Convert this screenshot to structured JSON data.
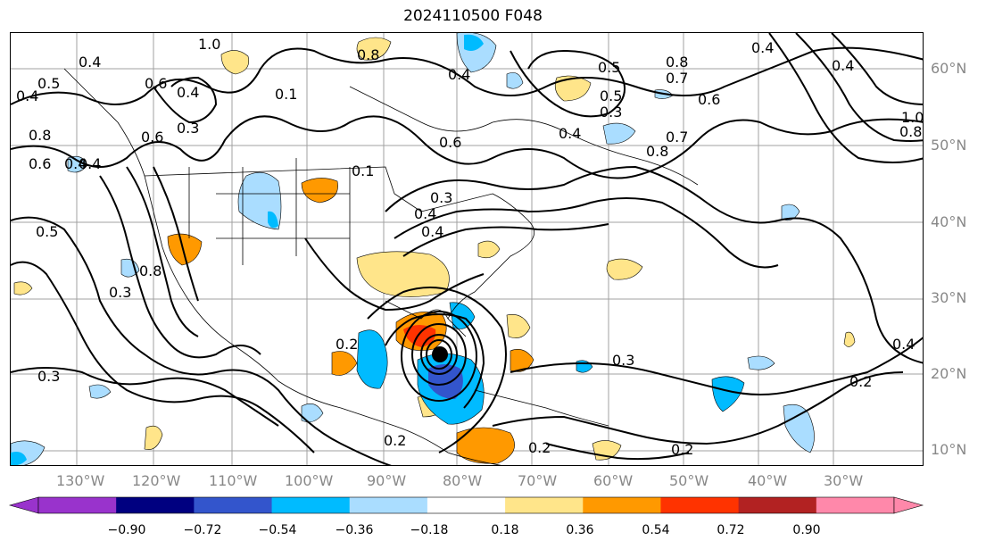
{
  "title": "2024110500 F048",
  "lon_ticks": [
    "130°W",
    "120°W",
    "110°W",
    "100°W",
    "90°W",
    "80°W",
    "70°W",
    "60°W",
    "50°W",
    "40°W",
    "30°W"
  ],
  "lat_ticks": [
    "60°N",
    "50°N",
    "40°N",
    "30°N",
    "20°N",
    "10°N"
  ],
  "colorbar": {
    "colors": [
      "#9933cc",
      "#000080",
      "#3355cc",
      "#00bbff",
      "#aaddff",
      "#ffffff",
      "#ffe58a",
      "#ff9900",
      "#ff3300",
      "#b22222",
      "#ff88aa"
    ],
    "labels": [
      "−0.90",
      "−0.72",
      "−0.54",
      "−0.36",
      "−0.18",
      "0.18",
      "0.36",
      "0.54",
      "0.72",
      "0.90"
    ]
  },
  "contour_labels": [
    "0.8",
    "1.0",
    "0.4",
    "0.5",
    "0.4",
    "0.6",
    "0.4",
    "0.3",
    "0.6",
    "0.4",
    "0.8",
    "0.6",
    "0.4",
    "0.5",
    "0.8",
    "0.7",
    "0.4",
    "0.6",
    "0.5",
    "0.3",
    "0.4",
    "0.8",
    "0.7",
    "0.4",
    "0.1",
    "0.1",
    "0.4",
    "0.3",
    "0.4",
    "0.6",
    "0.4",
    "0.3",
    "0.8",
    "0.3",
    "0.2",
    "0.2",
    "0.2",
    "0.2",
    "0.3",
    "0.2",
    "0.4",
    "1.0",
    "0.8"
  ],
  "storm_marker": "tropical-cyclone-center"
}
